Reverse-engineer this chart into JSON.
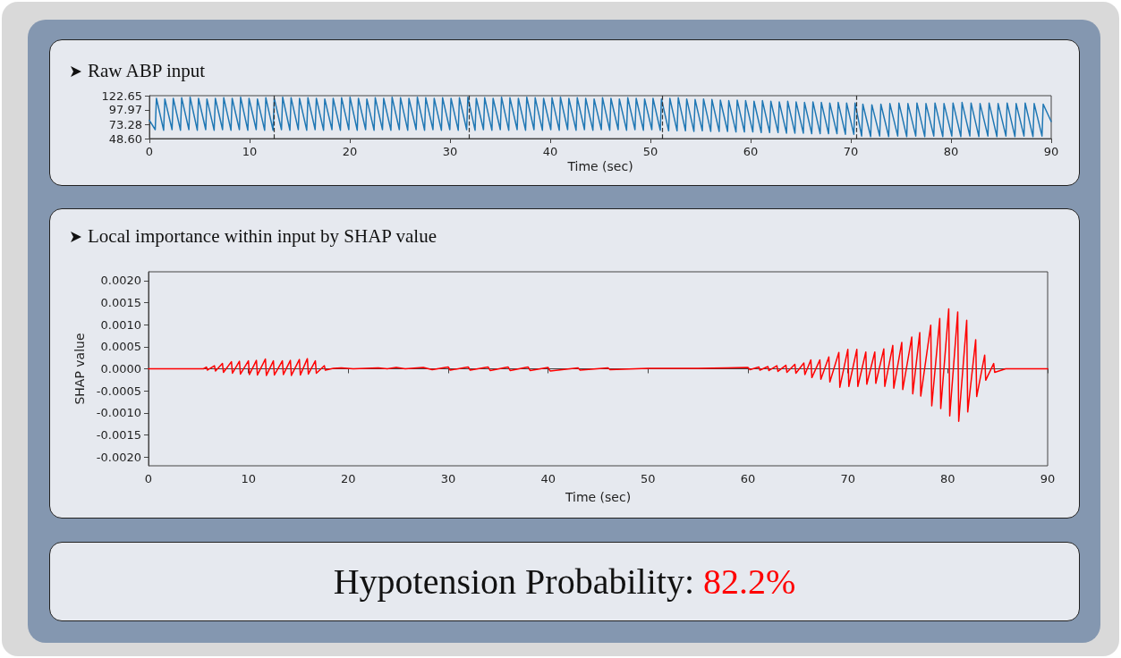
{
  "chart_data": [
    {
      "type": "line",
      "title": "Raw ABP input",
      "xlabel": "Time (sec)",
      "xlim": [
        0,
        90
      ],
      "xticks": [
        0,
        10,
        20,
        30,
        40,
        50,
        60,
        70,
        80,
        90
      ],
      "ylim": [
        48.6,
        122.65
      ],
      "yticks": [
        {
          "value": 48.6,
          "label": "48.60"
        },
        {
          "value": 73.28,
          "label": "73.28"
        },
        {
          "value": 97.97,
          "label": "97.97"
        },
        {
          "value": 122.65,
          "label": "122.65"
        }
      ],
      "ref_lines": [
        {
          "axis": "x",
          "value": 12.4,
          "color": "#333333",
          "line_style": "dashed"
        },
        {
          "axis": "x",
          "value": 31.9,
          "color": "#333333",
          "line_style": "dashed"
        },
        {
          "axis": "x",
          "value": 51.2,
          "color": "#333333",
          "line_style": "dashed"
        },
        {
          "axis": "x",
          "value": 70.6,
          "color": "#333333",
          "line_style": "dashed"
        }
      ],
      "series": [
        {
          "color": "#1f77b4",
          "x": [
            0,
            0.58,
            0.7,
            1.42,
            1.54,
            2.26,
            2.38,
            3.1,
            3.22,
            3.94,
            4.06,
            4.78,
            4.9,
            5.62,
            5.74,
            6.46,
            6.58,
            7.3,
            7.42,
            8.14,
            8.26,
            8.98,
            9.1,
            9.82,
            9.94,
            10.66,
            10.78,
            11.5,
            11.62,
            12.34,
            12.46,
            13.18,
            13.3,
            14.02,
            14.14,
            14.86,
            14.98,
            15.7,
            15.82,
            16.54,
            16.66,
            17.38,
            17.5,
            18.22,
            18.34,
            19.06,
            19.18,
            19.9,
            20.02,
            20.74,
            20.86,
            21.58,
            21.7,
            22.42,
            22.54,
            23.26,
            23.38,
            24.1,
            24.22,
            24.94,
            25.06,
            25.78,
            25.9,
            26.62,
            26.74,
            27.46,
            27.58,
            28.3,
            28.42,
            29.14,
            29.26,
            29.98,
            30.1,
            30.82,
            30.94,
            31.66,
            31.78,
            32.5,
            32.62,
            33.34,
            33.46,
            34.18,
            34.3,
            35.02,
            35.14,
            35.86,
            35.98,
            36.7,
            36.82,
            37.54,
            37.66,
            38.38,
            38.5,
            39.22,
            39.34,
            40.06,
            40.18,
            40.9,
            41.02,
            41.74,
            41.86,
            42.58,
            42.7,
            43.42,
            43.54,
            44.26,
            44.38,
            45.1,
            45.22,
            45.94,
            46.06,
            46.78,
            46.9,
            47.62,
            47.74,
            48.46,
            48.58,
            49.3,
            49.42,
            50.14,
            50.26,
            50.98,
            51.1,
            51.82,
            51.94,
            52.66,
            52.78,
            53.5,
            53.62,
            54.34,
            54.46,
            55.18,
            55.3,
            56.02,
            56.14,
            56.86,
            56.98,
            57.7,
            57.82,
            58.54,
            58.66,
            59.38,
            59.5,
            60.22,
            60.34,
            61.06,
            61.18,
            61.9,
            62.02,
            62.74,
            62.86,
            63.58,
            63.7,
            64.42,
            64.54,
            65.26,
            65.38,
            66.1,
            66.22,
            66.94,
            67.06,
            67.78,
            67.9,
            68.62,
            68.74,
            69.46,
            69.58,
            70.3,
            70.42,
            71.08,
            71.2,
            71.98,
            72.1,
            72.88,
            73.0,
            73.78,
            73.9,
            74.68,
            74.8,
            75.58,
            75.7,
            76.48,
            76.6,
            77.38,
            77.5,
            78.28,
            78.4,
            79.18,
            79.3,
            80.08,
            80.2,
            80.98,
            81.1,
            81.88,
            82.0,
            82.78,
            82.9,
            83.68,
            83.8,
            84.58,
            84.7,
            85.48,
            85.6,
            86.38,
            86.5,
            87.28,
            87.4,
            88.18,
            88.3,
            89.08,
            89.2,
            90
          ],
          "values": [
            80,
            64,
            118,
            63,
            117,
            64,
            118,
            63,
            119,
            64,
            120,
            63,
            118,
            64,
            117,
            63,
            118,
            64,
            119,
            63,
            118,
            64,
            120,
            63,
            118,
            64,
            117,
            63,
            119,
            63,
            118,
            64,
            120,
            63,
            119,
            64,
            118,
            63,
            119,
            64,
            118,
            63,
            117,
            64,
            118,
            63,
            119,
            64,
            120,
            63,
            118,
            64,
            117,
            63,
            119,
            64,
            118,
            63,
            120,
            64,
            119,
            63,
            118,
            64,
            120,
            63,
            119,
            64,
            118,
            63,
            119,
            64,
            118,
            63,
            119,
            64,
            120,
            63,
            118,
            64,
            119,
            63,
            118,
            64,
            120,
            63,
            119,
            64,
            118,
            63,
            120,
            64,
            119,
            63,
            118,
            64,
            119,
            63,
            120,
            64,
            118,
            63,
            119,
            64,
            118,
            63,
            117,
            64,
            119,
            63,
            118,
            64,
            117,
            63,
            119,
            64,
            118,
            63,
            117,
            64,
            118,
            63,
            117,
            62,
            118,
            62,
            119,
            62,
            117,
            61,
            116,
            62,
            117,
            61,
            116,
            61,
            115,
            61,
            114,
            60,
            115,
            60,
            114,
            60,
            113,
            59,
            114,
            59,
            113,
            59,
            112,
            58,
            113,
            58,
            112,
            58,
            111,
            57,
            112,
            57,
            111,
            57,
            110,
            57,
            111,
            56,
            110,
            56,
            110,
            53,
            108,
            52,
            107,
            53,
            108,
            52,
            109,
            53,
            110,
            52,
            109,
            53,
            110,
            52,
            109,
            53,
            110,
            52,
            109,
            53,
            110,
            52,
            111,
            53,
            110,
            52,
            109,
            53,
            110,
            52,
            109,
            53,
            110,
            52,
            109,
            53,
            110,
            52,
            109,
            53,
            108,
            78
          ]
        }
      ]
    },
    {
      "type": "line",
      "title": "Local importance within input by SHAP value",
      "xlabel": "Time (sec)",
      "ylabel": "SHAP value",
      "xlim": [
        0,
        90
      ],
      "xticks": [
        0,
        10,
        20,
        30,
        40,
        50,
        60,
        70,
        80,
        90
      ],
      "ylim": [
        -0.0022,
        0.0022
      ],
      "yticks": [
        {
          "value": -0.002,
          "label": "-0.0020"
        },
        {
          "value": -0.0015,
          "label": "-0.0015"
        },
        {
          "value": -0.001,
          "label": "-0.0010"
        },
        {
          "value": -0.0005,
          "label": "-0.0005"
        },
        {
          "value": 0,
          "label": "0.0000"
        },
        {
          "value": 0.0005,
          "label": "0.0005"
        },
        {
          "value": 0.001,
          "label": "0.0010"
        },
        {
          "value": 0.0015,
          "label": "0.0015"
        },
        {
          "value": 0.002,
          "label": "0.0020"
        }
      ],
      "series": [
        {
          "color": "#ff0000",
          "x": [
            0,
            5.5,
            5.8,
            5.9,
            6.6,
            6.7,
            7.4,
            7.5,
            8.3,
            8.4,
            9.1,
            9.2,
            10.0,
            10.1,
            10.8,
            10.9,
            11.7,
            11.8,
            12.5,
            12.6,
            13.4,
            13.5,
            14.2,
            14.3,
            15.1,
            15.2,
            15.9,
            16.0,
            16.7,
            16.8,
            17.6,
            17.7,
            18.5,
            19.3,
            20.5,
            23,
            23.9,
            24.8,
            25.7,
            27.5,
            28.4,
            30,
            30.2,
            32,
            32.2,
            34,
            34.2,
            36,
            36.2,
            38,
            38.2,
            40,
            40.2,
            43,
            43.2,
            46,
            46.2,
            50,
            55,
            58,
            60,
            60.2,
            61.1,
            61.2,
            62.0,
            62.1,
            62.9,
            63.0,
            63.8,
            63.9,
            64.7,
            64.8,
            65.6,
            65.7,
            66.3,
            66.4,
            67.2,
            67.3,
            68.1,
            68.2,
            69.1,
            69.2,
            70.0,
            70.1,
            70.9,
            71.0,
            71.8,
            71.9,
            72.7,
            72.8,
            73.6,
            73.7,
            74.5,
            74.6,
            75.4,
            75.5,
            76.4,
            76.5,
            77.2,
            77.3,
            78.3,
            78.4,
            79.2,
            79.3,
            80.1,
            80.2,
            81.0,
            81.1,
            81.9,
            82.0,
            82.8,
            82.9,
            83.7,
            83.8,
            84.6,
            84.7,
            85.8,
            90
          ],
          "values": [
            0,
            0,
            4e-05,
            -3e-05,
            7e-05,
            -5e-05,
            0.00012,
            -8e-05,
            0.00016,
            -0.0001,
            0.00017,
            -0.00012,
            0.00018,
            -0.00013,
            0.00019,
            -0.00014,
            0.00022,
            -0.00015,
            0.00018,
            -0.00014,
            0.00018,
            -0.00013,
            0.00019,
            -0.00015,
            0.00021,
            -0.00014,
            0.00023,
            -0.00012,
            0.00018,
            -0.0001,
            7e-05,
            -3e-05,
            1e-05,
            2e-05,
            0,
            2e-05,
            0,
            3e-05,
            0,
            3e-05,
            -2e-05,
            4e-05,
            -3e-05,
            4e-05,
            -3e-05,
            4e-05,
            -4e-05,
            4e-05,
            -4e-05,
            4e-05,
            -4e-05,
            3e-05,
            -5e-05,
            2e-05,
            -3e-05,
            2e-05,
            -2e-05,
            1e-05,
            1e-05,
            2e-05,
            3e-05,
            -2e-05,
            4e-05,
            -3e-05,
            5e-05,
            -4e-05,
            7e-05,
            -6e-05,
            8e-05,
            -8e-05,
            0.0001,
            -0.0001,
            0.00013,
            -0.00013,
            0.0002,
            -0.0002,
            0.0002,
            -0.00024,
            0.00027,
            -0.0003,
            0.00037,
            -0.00042,
            0.00044,
            -0.0004,
            0.00044,
            -0.0004,
            0.00038,
            -0.00035,
            0.00038,
            -0.00033,
            0.00045,
            -0.0004,
            0.00053,
            -0.00044,
            0.0006,
            -0.00047,
            0.00072,
            -0.00057,
            0.00082,
            -0.00062,
            0.00099,
            -0.00084,
            0.00114,
            -0.0009,
            0.00136,
            -0.00107,
            0.00129,
            -0.00119,
            0.0011,
            -0.00098,
            0.00066,
            -0.00063,
            0.00031,
            -0.00026,
            0.00012,
            -8e-05,
            0,
            0
          ]
        }
      ]
    },
    {
      "type": "other",
      "title": "Hypotension Probability:",
      "annotations": [
        "82.2%"
      ],
      "color": "#ff0000"
    }
  ]
}
